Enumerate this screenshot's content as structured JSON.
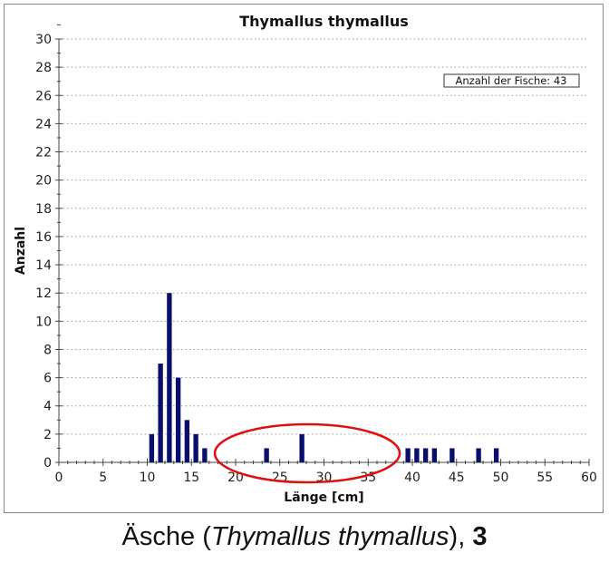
{
  "chart_data": {
    "type": "bar",
    "title": "Thymallus thymallus",
    "xlabel": "Länge [cm]",
    "ylabel": "Anzahl",
    "xlim": [
      0,
      60
    ],
    "ylim": [
      0,
      30
    ],
    "xticks": [
      0,
      5,
      10,
      15,
      20,
      25,
      30,
      35,
      40,
      45,
      50,
      55,
      60
    ],
    "yticks": [
      0,
      2,
      4,
      6,
      8,
      10,
      12,
      14,
      16,
      18,
      20,
      22,
      24,
      26,
      28,
      30
    ],
    "grid": true,
    "x": [
      10.5,
      11.5,
      12.5,
      13.5,
      14.5,
      15.5,
      16.5,
      23.5,
      27.5,
      39.5,
      40.5,
      41.5,
      42.5,
      44.5,
      47.5,
      49.5
    ],
    "values": [
      2,
      7,
      12,
      6,
      3,
      2,
      1,
      1,
      2,
      1,
      1,
      1,
      1,
      1,
      1,
      1
    ],
    "bar_color": "#0a0f6e",
    "annotation": "Anzahl der Fische: 43",
    "highlight_ellipse_color": "#e01010"
  },
  "caption": {
    "prefix": "Äsche (",
    "species": "Thymallus thymallus",
    "suffix": "), ",
    "number": "3"
  }
}
